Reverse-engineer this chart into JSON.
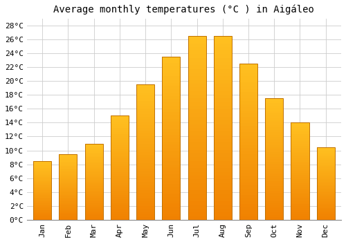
{
  "title": "Average monthly temperatures (°C ) in Aigáleo",
  "months": [
    "Jan",
    "Feb",
    "Mar",
    "Apr",
    "May",
    "Jun",
    "Jul",
    "Aug",
    "Sep",
    "Oct",
    "Nov",
    "Dec"
  ],
  "temperatures": [
    8.5,
    9.5,
    11.0,
    15.0,
    19.5,
    23.5,
    26.5,
    26.5,
    22.5,
    17.5,
    14.0,
    10.5
  ],
  "bar_color_top": "#FFC020",
  "bar_color_bottom": "#F08000",
  "bar_edge_color": "#C07000",
  "ylim": [
    0,
    29
  ],
  "yticks": [
    0,
    2,
    4,
    6,
    8,
    10,
    12,
    14,
    16,
    18,
    20,
    22,
    24,
    26,
    28
  ],
  "ytick_labels": [
    "0°C",
    "2°C",
    "4°C",
    "6°C",
    "8°C",
    "10°C",
    "12°C",
    "14°C",
    "16°C",
    "18°C",
    "20°C",
    "22°C",
    "24°C",
    "26°C",
    "28°C"
  ],
  "background_color": "#ffffff",
  "grid_color": "#cccccc",
  "title_fontsize": 10,
  "tick_fontsize": 8
}
